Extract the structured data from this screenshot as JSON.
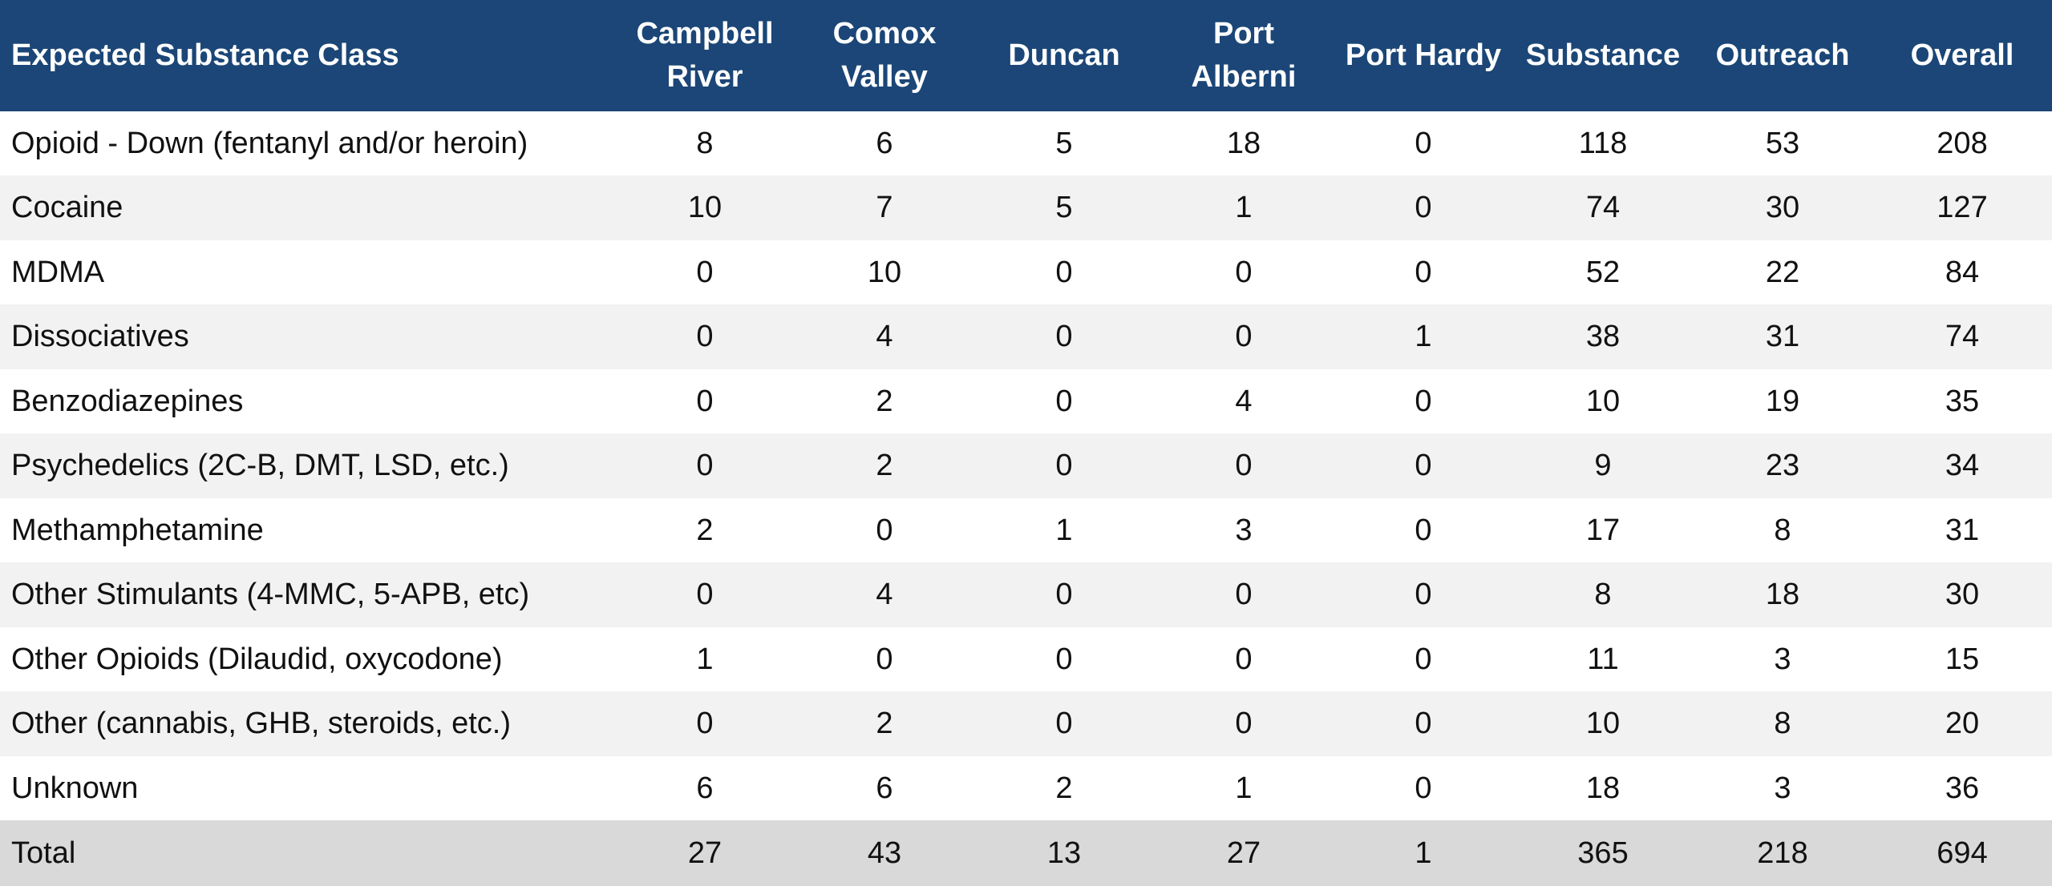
{
  "table": {
    "header": [
      "Expected Substance Class",
      "Campbell River",
      "Comox Valley",
      "Duncan",
      "Port Alberni",
      "Port Hardy",
      "Substance",
      "Outreach",
      "Overall"
    ],
    "rows": [
      [
        "Opioid - Down (fentanyl and/or heroin)",
        8,
        6,
        5,
        18,
        0,
        118,
        53,
        208
      ],
      [
        "Cocaine",
        10,
        7,
        5,
        1,
        0,
        74,
        30,
        127
      ],
      [
        "MDMA",
        0,
        10,
        0,
        0,
        0,
        52,
        22,
        84
      ],
      [
        "Dissociatives",
        0,
        4,
        0,
        0,
        1,
        38,
        31,
        74
      ],
      [
        "Benzodiazepines",
        0,
        2,
        0,
        4,
        0,
        10,
        19,
        35
      ],
      [
        "Psychedelics (2C-B, DMT, LSD, etc.)",
        0,
        2,
        0,
        0,
        0,
        9,
        23,
        34
      ],
      [
        "Methamphetamine",
        2,
        0,
        1,
        3,
        0,
        17,
        8,
        31
      ],
      [
        "Other Stimulants (4-MMC, 5-APB, etc)",
        0,
        4,
        0,
        0,
        0,
        8,
        18,
        30
      ],
      [
        "Other Opioids (Dilaudid, oxycodone)",
        1,
        0,
        0,
        0,
        0,
        11,
        3,
        15
      ],
      [
        "Other (cannabis, GHB, steroids, etc.)",
        0,
        2,
        0,
        0,
        0,
        10,
        8,
        20
      ],
      [
        "Unknown",
        6,
        6,
        2,
        1,
        0,
        18,
        3,
        36
      ]
    ],
    "total": [
      "Total",
      27,
      43,
      13,
      27,
      1,
      365,
      218,
      694
    ]
  }
}
